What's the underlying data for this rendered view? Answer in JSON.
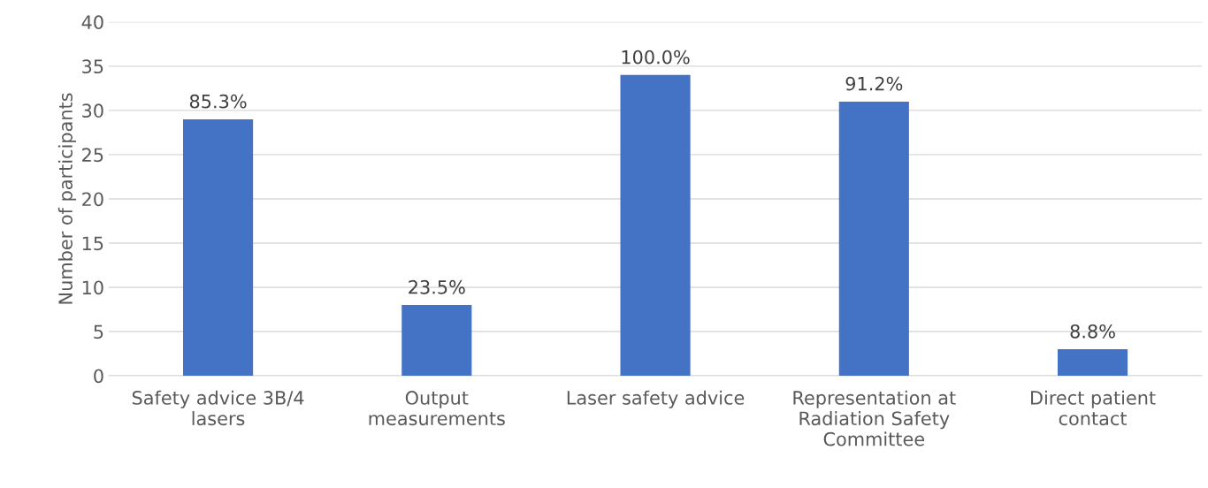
{
  "chart_data": {
    "type": "bar",
    "ylabel": "Number of participants",
    "categories": [
      "Safety advice 3B/4\nlasers",
      "Output\nmeasurements",
      "Laser safety advice",
      "Representation at\nRadiation Safety\nCommittee",
      "Direct patient\ncontact"
    ],
    "values": [
      29,
      8,
      34,
      31,
      3
    ],
    "color": "#4472c4",
    "annotations": [
      {
        "text": "85.3%",
        "x": "Safety advice 3B/4\nlasers",
        "y": 29
      },
      {
        "text": "23.5%",
        "x": "Output\nmeasurements",
        "y": 8
      },
      {
        "text": "100.0%",
        "x": "Laser safety advice",
        "y": 34
      },
      {
        "text": "91.2%",
        "x": "Representation at\nRadiation Safety\nCommittee",
        "y": 31
      },
      {
        "text": "8.8%",
        "x": "Direct patient\ncontact",
        "y": 3
      }
    ],
    "ylim": [
      0,
      40
    ],
    "yticks": [
      0,
      5,
      10,
      15,
      20,
      25,
      30,
      35,
      40
    ],
    "grid": "y",
    "legend": false
  }
}
